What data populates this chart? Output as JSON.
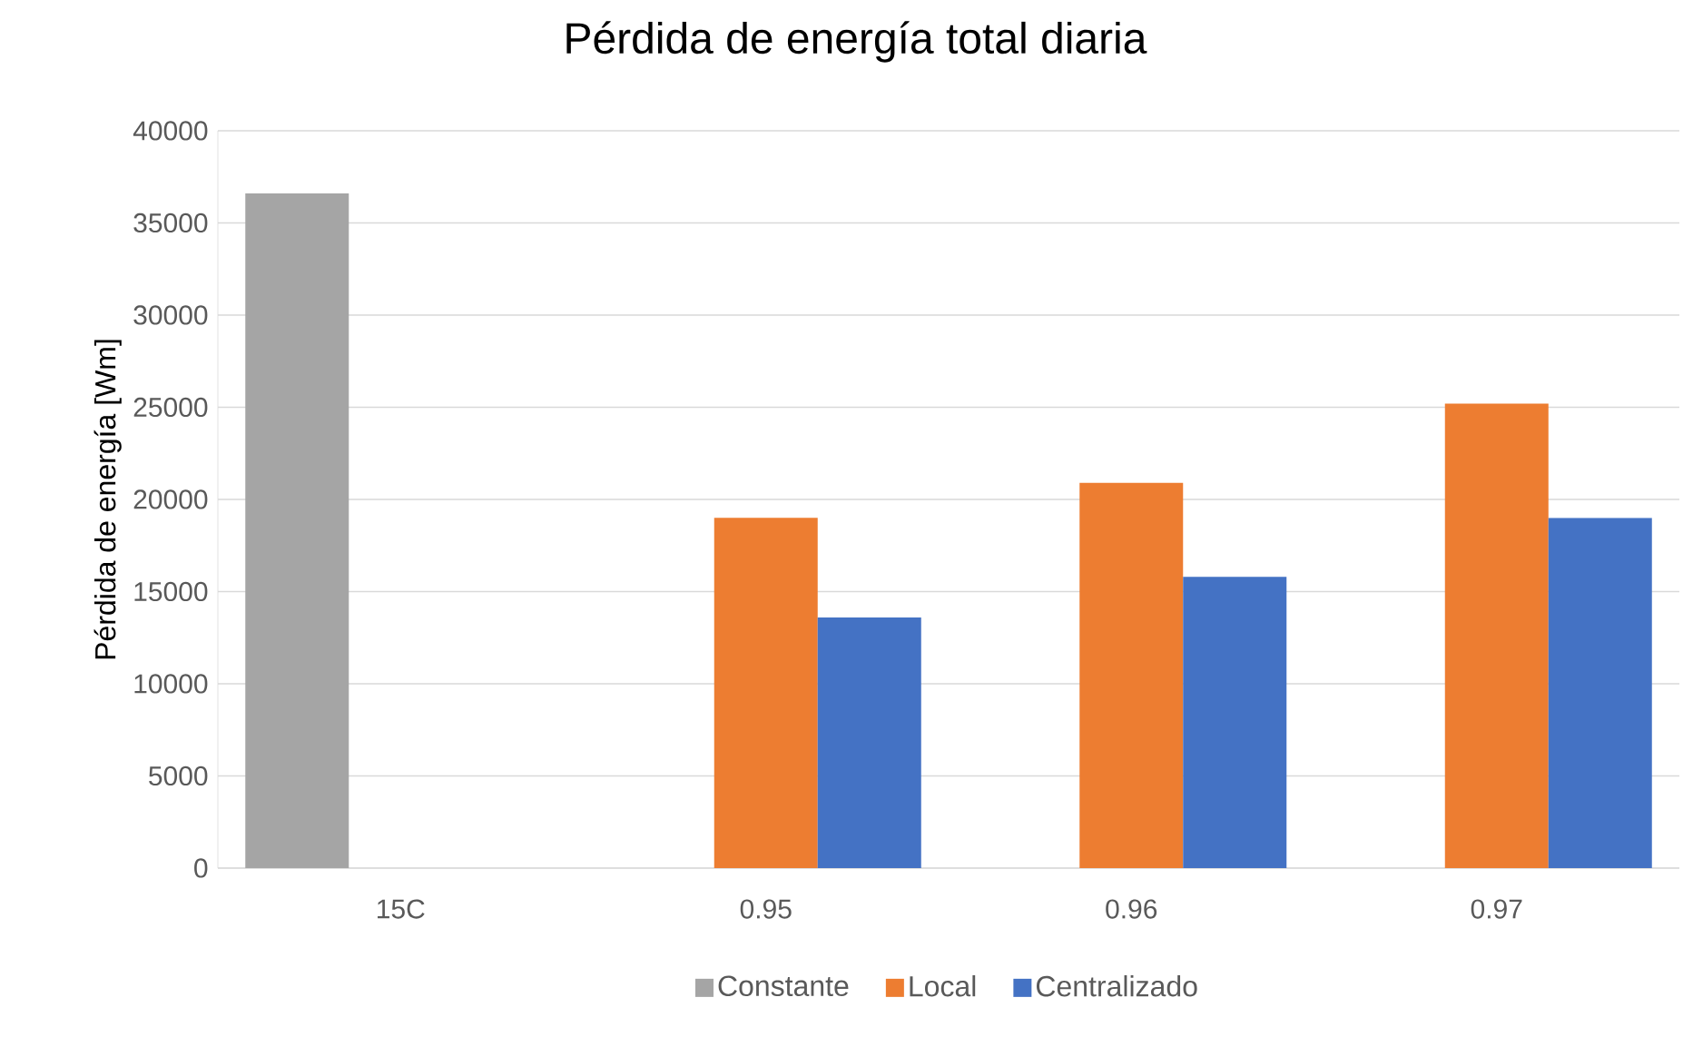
{
  "chart_data": {
    "type": "bar",
    "title": "Pérdida de energía total diaria",
    "ylabel": "Pérdida de energía [Wm]",
    "categories": [
      "15C",
      "0.95",
      "0.96",
      "0.97"
    ],
    "series": [
      {
        "name": "Constante",
        "color": "#a5a5a5",
        "values": [
          36600,
          null,
          null,
          null
        ]
      },
      {
        "name": "Local",
        "color": "#ed7d31",
        "values": [
          null,
          19000,
          20900,
          25200
        ]
      },
      {
        "name": "Centralizado",
        "color": "#4472c4",
        "values": [
          null,
          13600,
          15800,
          19000
        ]
      }
    ],
    "ylim": [
      0,
      40000
    ],
    "yticks": [
      0,
      5000,
      10000,
      15000,
      20000,
      25000,
      30000,
      35000,
      40000
    ],
    "grid": "y",
    "legend": "bottom"
  }
}
